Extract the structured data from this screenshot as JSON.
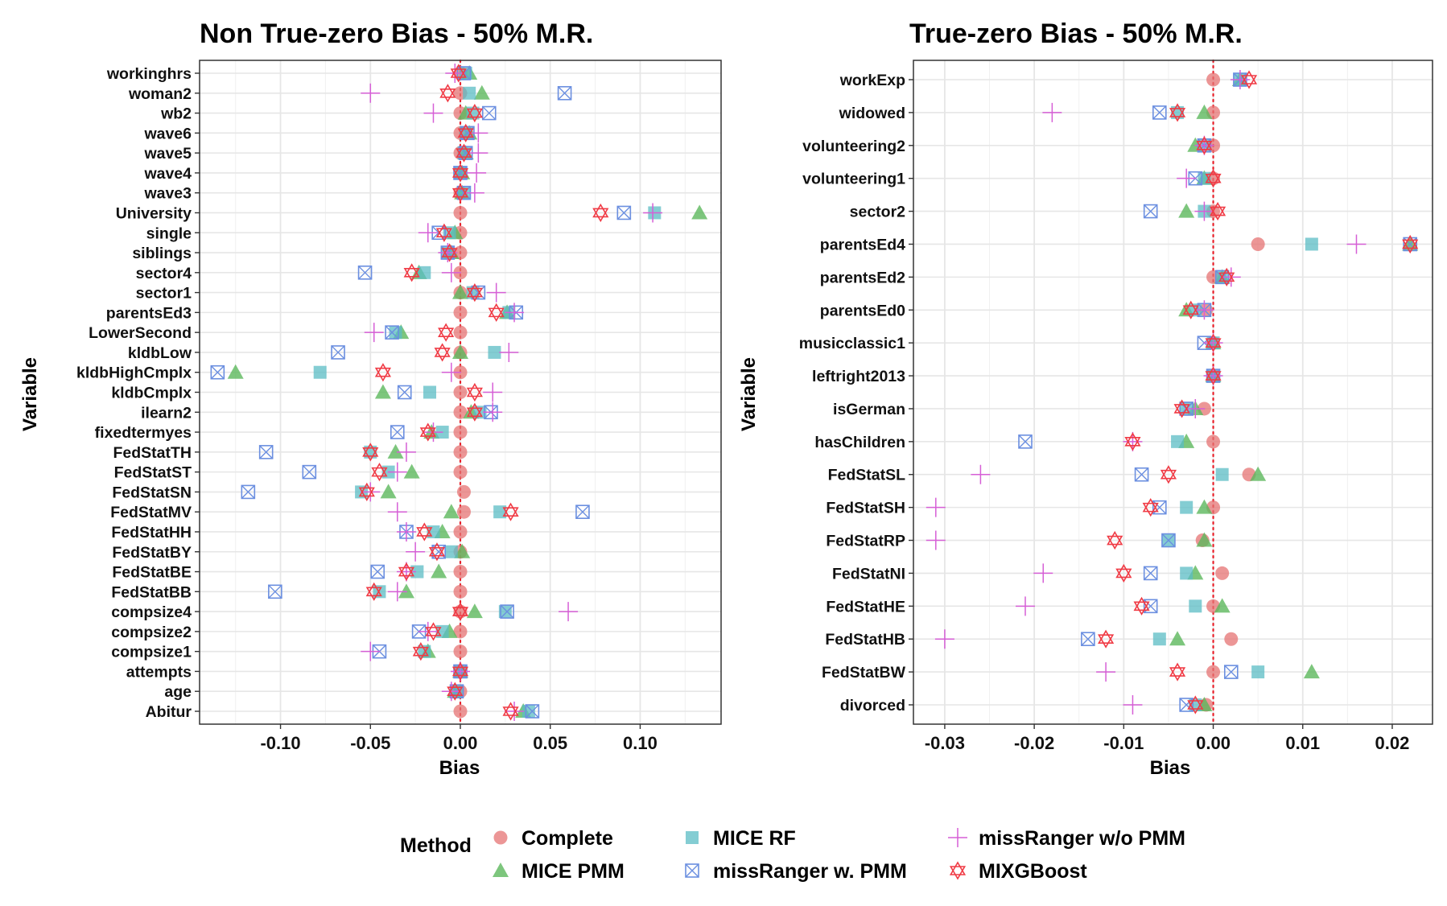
{
  "colors": {
    "Complete": "#e57373",
    "MICE PMM": "#5cb85c",
    "MICE RF": "#5bbcc4",
    "missRanger w. PMM": "#6b8fe0",
    "missRanger w/o PMM": "#d65fd6",
    "MIXGBoost": "#f03b45"
  },
  "legend": {
    "title": "Method",
    "position": "bottom",
    "items": [
      {
        "method": "Complete",
        "shape": "circle"
      },
      {
        "method": "MICE PMM",
        "shape": "triangle"
      },
      {
        "method": "MICE RF",
        "shape": "square"
      },
      {
        "method": "missRanger w. PMM",
        "shape": "boxcross"
      },
      {
        "method": "missRanger w/o PMM",
        "shape": "plus"
      },
      {
        "method": "MIXGBoost",
        "shape": "star"
      }
    ]
  },
  "chart_data": [
    {
      "type": "scatter",
      "title": "Non True-zero Bias - 50% M.R.",
      "xlabel": "Bias",
      "ylabel": "Variable",
      "xlim": [
        -0.145,
        0.145
      ],
      "xticks": [
        -0.1,
        -0.05,
        0.0,
        0.05,
        0.1
      ],
      "xtick_labels": [
        "-0.10",
        "-0.05",
        "0.00",
        "0.05",
        "0.10"
      ],
      "reference_line": 0,
      "grid": true,
      "variables": [
        "workinghrs",
        "woman2",
        "wb2",
        "wave6",
        "wave5",
        "wave4",
        "wave3",
        "University",
        "single",
        "siblings",
        "sector4",
        "sector1",
        "parentsEd3",
        "LowerSecond",
        "kldbLow",
        "kldbHighCmplx",
        "kldbCmplx",
        "ilearn2",
        "fixedtermyes",
        "FedStatTH",
        "FedStatST",
        "FedStatSN",
        "FedStatMV",
        "FedStatHH",
        "FedStatBY",
        "FedStatBE",
        "FedStatBB",
        "compsize4",
        "compsize2",
        "compsize1",
        "attempts",
        "age",
        "Abitur"
      ],
      "series": [
        {
          "name": "Complete",
          "values": [
            0.0,
            0.0,
            0.0,
            0.0,
            0.0,
            0.0,
            0.0,
            0.0,
            0.0,
            0.0,
            0.0,
            0.0,
            0.0,
            0.0,
            0.0,
            0.0,
            0.0,
            0.0,
            0.0,
            0.0,
            0.0,
            0.002,
            0.002,
            0.0,
            0.0,
            0.0,
            0.0,
            0.0,
            0.0,
            0.0,
            0.0,
            0.0,
            0.0
          ]
        },
        {
          "name": "MICE PMM",
          "values": [
            0.005,
            0.012,
            0.003,
            0.005,
            0.003,
            0.001,
            0.001,
            0.133,
            -0.003,
            -0.005,
            -0.023,
            0.0,
            0.026,
            -0.033,
            0.0,
            -0.125,
            -0.043,
            0.006,
            -0.016,
            -0.036,
            -0.027,
            -0.04,
            -0.005,
            -0.01,
            0.001,
            -0.012,
            -0.03,
            0.008,
            -0.006,
            -0.018,
            0.0,
            -0.003,
            0.035
          ]
        },
        {
          "name": "MICE RF",
          "values": [
            0.003,
            0.005,
            0.007,
            0.003,
            0.002,
            0.0,
            0.002,
            0.108,
            -0.006,
            -0.007,
            -0.02,
            0.007,
            0.027,
            -0.036,
            0.019,
            -0.078,
            -0.017,
            0.011,
            -0.01,
            -0.05,
            -0.04,
            -0.055,
            0.022,
            -0.015,
            -0.005,
            -0.024,
            -0.045,
            0.025,
            -0.01,
            -0.02,
            0.0,
            -0.002,
            0.038
          ]
        },
        {
          "name": "missRanger w. PMM",
          "values": [
            0.002,
            0.058,
            0.016,
            0.004,
            0.003,
            0.0,
            0.002,
            0.091,
            -0.012,
            -0.007,
            -0.053,
            0.01,
            0.031,
            -0.038,
            -0.068,
            -0.135,
            -0.031,
            0.017,
            -0.035,
            -0.108,
            -0.084,
            -0.118,
            0.068,
            -0.03,
            -0.012,
            -0.046,
            -0.103,
            0.026,
            -0.023,
            -0.045,
            0.0,
            -0.002,
            0.04
          ]
        },
        {
          "name": "missRanger w/o PMM",
          "values": [
            -0.003,
            -0.05,
            -0.015,
            0.01,
            0.01,
            0.009,
            0.008,
            0.107,
            -0.018,
            -0.007,
            -0.005,
            0.02,
            0.03,
            -0.048,
            0.027,
            -0.005,
            0.018,
            0.018,
            -0.015,
            -0.03,
            -0.035,
            -0.05,
            -0.035,
            -0.03,
            -0.025,
            -0.03,
            -0.035,
            0.06,
            -0.018,
            -0.05,
            0.0,
            -0.005,
            0.03
          ]
        },
        {
          "name": "MIXGBoost",
          "values": [
            -0.001,
            -0.007,
            0.008,
            0.003,
            0.002,
            0.0,
            0.0,
            0.078,
            -0.009,
            -0.006,
            -0.027,
            0.008,
            0.02,
            -0.008,
            -0.01,
            -0.043,
            0.008,
            0.008,
            -0.018,
            -0.05,
            -0.045,
            -0.052,
            0.028,
            -0.02,
            -0.013,
            -0.03,
            -0.048,
            0.0,
            -0.015,
            -0.022,
            0.0,
            -0.003,
            0.028
          ]
        }
      ]
    },
    {
      "type": "scatter",
      "title": "True-zero Bias - 50% M.R.",
      "xlabel": "Bias",
      "ylabel": "Variable",
      "xlim": [
        -0.0335,
        0.0245
      ],
      "xticks": [
        -0.03,
        -0.02,
        -0.01,
        0.0,
        0.01,
        0.02
      ],
      "xtick_labels": [
        "-0.03",
        "-0.02",
        "-0.01",
        "0.00",
        "0.01",
        "0.02"
      ],
      "reference_line": 0,
      "grid": true,
      "variables": [
        "workExp",
        "widowed",
        "volunteering2",
        "volunteering1",
        "sector2",
        "parentsEd4",
        "parentsEd2",
        "parentsEd0",
        "musicclassic1",
        "leftright2013",
        "isGerman",
        "hasChildren",
        "FedStatSL",
        "FedStatSH",
        "FedStatRP",
        "FedStatNI",
        "FedStatHE",
        "FedStatHB",
        "FedStatBW",
        "divorced"
      ],
      "series": [
        {
          "name": "Complete",
          "values": [
            0.0,
            0.0,
            0.0,
            0.0,
            0.0,
            0.005,
            0.0,
            -0.0008,
            0.0,
            0.0,
            -0.001,
            0.0,
            0.004,
            0.0,
            -0.0012,
            0.001,
            0.0,
            0.002,
            0.0,
            -0.0008
          ]
        },
        {
          "name": "MICE PMM",
          "values": [
            0.003,
            -0.001,
            -0.002,
            -0.001,
            -0.003,
            0.022,
            0.001,
            -0.003,
            0.0,
            0.0,
            -0.002,
            -0.003,
            0.005,
            -0.001,
            -0.001,
            -0.002,
            0.001,
            -0.004,
            0.011,
            -0.001
          ]
        },
        {
          "name": "MICE RF",
          "values": [
            0.003,
            -0.004,
            -0.001,
            -0.001,
            -0.001,
            0.011,
            0.001,
            -0.002,
            0.0,
            0.0,
            -0.003,
            -0.004,
            0.001,
            -0.003,
            -0.005,
            -0.003,
            -0.002,
            -0.006,
            0.005,
            -0.002
          ]
        },
        {
          "name": "missRanger w. PMM",
          "values": [
            0.003,
            -0.006,
            -0.001,
            -0.002,
            -0.007,
            0.022,
            0.001,
            -0.001,
            -0.001,
            0.0,
            -0.003,
            -0.021,
            -0.008,
            -0.006,
            -0.005,
            -0.007,
            -0.007,
            -0.014,
            0.002,
            -0.003
          ]
        },
        {
          "name": "missRanger w/o PMM",
          "values": [
            0.003,
            -0.018,
            -0.001,
            -0.003,
            -0.001,
            0.016,
            0.002,
            -0.001,
            0.0,
            0.0,
            -0.002,
            -0.009,
            -0.026,
            -0.031,
            -0.031,
            -0.019,
            -0.021,
            -0.03,
            -0.012,
            -0.009
          ]
        },
        {
          "name": "MIXGBoost",
          "values": [
            0.004,
            -0.004,
            -0.001,
            0.0,
            0.0005,
            0.022,
            0.0015,
            -0.0025,
            0.0,
            0.0,
            -0.0035,
            -0.009,
            -0.005,
            -0.007,
            -0.011,
            -0.01,
            -0.008,
            -0.012,
            -0.004,
            -0.002
          ]
        }
      ]
    }
  ]
}
